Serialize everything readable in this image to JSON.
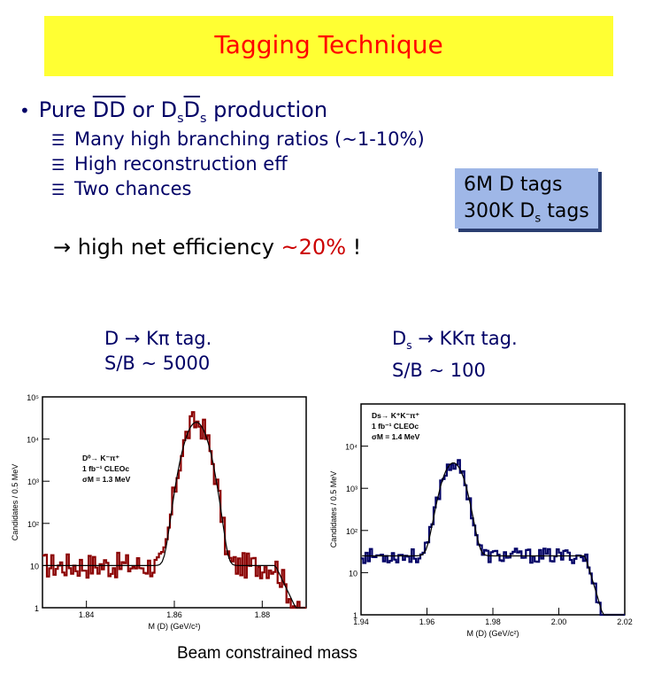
{
  "title": "Tagging Technique",
  "bullet": {
    "dot": "•",
    "pre": "Pure ",
    "dd": "DD",
    "or": " or ",
    "ds1": "D",
    "ds1_sub": "s",
    "ds2": "D",
    "ds2_sub": "s",
    "post": " production"
  },
  "sub_items": [
    {
      "mark": "☰",
      "text": "Many high branching ratios (~1-10%)"
    },
    {
      "mark": "☰",
      "text": "High reconstruction eff"
    },
    {
      "mark": "☰",
      "text": "Two chances"
    }
  ],
  "tags_box": {
    "line1": "6M D tags",
    "line2_pre": "300K D",
    "line2_sub": "s",
    "line2_post": " tags"
  },
  "net_eff": {
    "arrow": "→",
    "text": " high net efficiency ",
    "value": "~20%",
    "end": " !"
  },
  "label_left": {
    "line1": "D → Kπ tag.",
    "line2": "S/B ~ 5000"
  },
  "label_right": {
    "line1_pre": "D",
    "line1_sub": "s",
    "line1_post": " → KKπ tag.",
    "line2": "S/B ~ 100"
  },
  "caption": "Beam constrained mass",
  "chart_data": [
    {
      "type": "line",
      "title": "",
      "xlabel": "M (D) (GeV/c²)",
      "ylabel": "Candidates / 0.5 MeV",
      "log_y": true,
      "xlim": [
        1.83,
        1.89
      ],
      "ylim": [
        1,
        100000
      ],
      "x_ticks": [
        "1.84",
        "1.86",
        "1.88"
      ],
      "y_ticks": [
        "1",
        "10",
        "10²",
        "10³",
        "10⁴",
        "10⁵"
      ],
      "legend": [
        "D⁰→ K⁻π⁺",
        "1 fb⁻¹ CLEOc",
        "σM = 1.3 MeV"
      ],
      "peak_x": 1.865,
      "peak_y": 25000,
      "background_y": 10,
      "color": "#8b0000"
    },
    {
      "type": "line",
      "title": "",
      "xlabel": "M (D) (GeV/c²)",
      "ylabel": "Candidates / 0.5 MeV",
      "log_y": true,
      "xlim": [
        1.94,
        2.02
      ],
      "ylim": [
        1,
        100000
      ],
      "x_ticks": [
        "1.94",
        "1.96",
        "1.98",
        "2.00",
        "2.02"
      ],
      "y_ticks": [
        "1",
        "10",
        "10²",
        "10³",
        "10⁴"
      ],
      "legend": [
        "Ds→ K⁺K⁻π⁺",
        "1 fb⁻¹ CLEOc",
        "σM = 1.4 MeV"
      ],
      "peak_x": 1.968,
      "peak_y": 4000,
      "background_y": 25,
      "color": "#000066"
    }
  ]
}
